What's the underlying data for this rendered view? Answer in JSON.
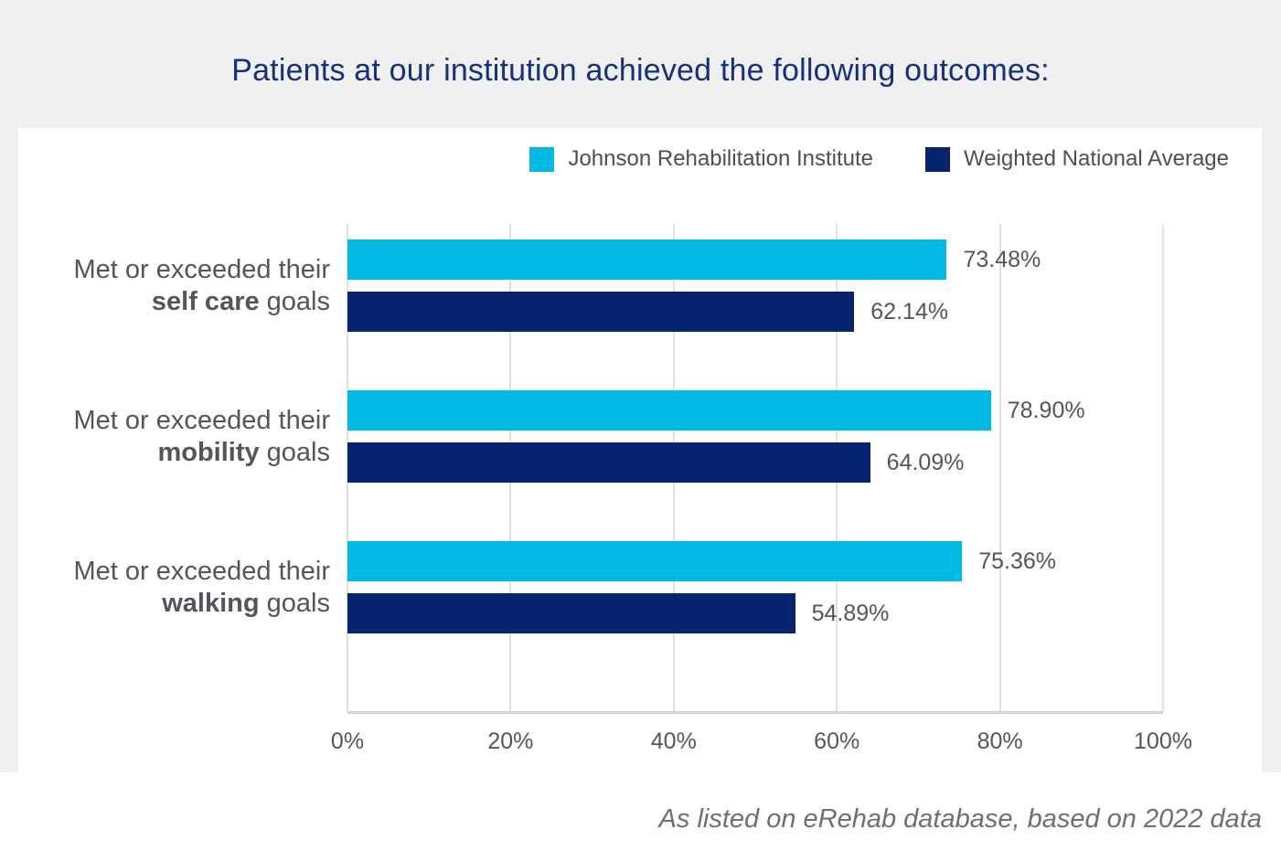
{
  "page": {
    "title": "Patients at our institution achieved the following outcomes:",
    "footer": "As listed on eRehab database, based on 2022 data"
  },
  "colors": {
    "institute_bar": "#00B9E4",
    "national_bar": "#062470",
    "title_text": "#15307E",
    "label_text": "#54555B",
    "page_background": "#F0F0F1",
    "card_background": "#FFFFFF",
    "gridline": "#E1E1E2"
  },
  "legend": [
    {
      "label": "Johnson Rehabilitation Institute",
      "color": "#00B9E4"
    },
    {
      "label": "Weighted National Average",
      "color": "#062470"
    }
  ],
  "chart_data": {
    "type": "bar",
    "orientation": "horizontal",
    "title": "Patients at our institution achieved the following outcomes:",
    "xlabel": "",
    "ylabel": "",
    "xlim": [
      0,
      100
    ],
    "grid": true,
    "legend_position": "top",
    "x_ticks": [
      "0%",
      "20%",
      "40%",
      "60%",
      "80%",
      "100%"
    ],
    "categories": [
      {
        "line1": "Met or exceeded their",
        "emphasis": "self care",
        "suffix": " goals"
      },
      {
        "line1": "Met or exceeded their",
        "emphasis": "mobility",
        "suffix": " goals"
      },
      {
        "line1": "Met or exceeded their",
        "emphasis": "walking",
        "suffix": " goals"
      }
    ],
    "series": [
      {
        "name": "Johnson Rehabilitation Institute",
        "key": "johnson",
        "color": "#00B9E4",
        "values": [
          73.48,
          78.9,
          75.36
        ],
        "labels": [
          "73.48%",
          "78.90%",
          "75.36%"
        ]
      },
      {
        "name": "Weighted National Average",
        "key": "national",
        "color": "#062470",
        "values": [
          62.14,
          64.09,
          54.89
        ],
        "labels": [
          "62.14%",
          "64.09%",
          "54.89%"
        ]
      }
    ]
  }
}
